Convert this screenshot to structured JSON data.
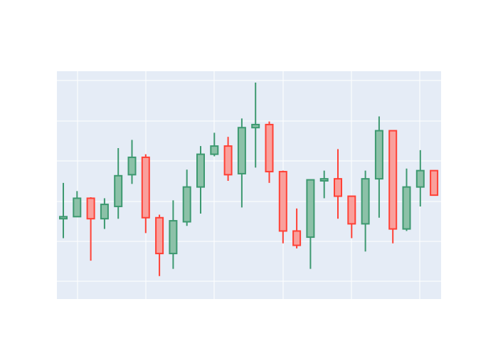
{
  "chart_data": {
    "type": "candlestick",
    "title": "",
    "xlabel": "",
    "ylabel": "",
    "tick_labels_visible": false,
    "grid": true,
    "legend": "none",
    "increasing_color": "#3D9970",
    "increasing_fill": "#8CC1A8",
    "decreasing_color": "#FF4136",
    "decreasing_fill": "#F9A09C",
    "background_color": "#E5ECF6",
    "ylim": [
      0,
      100
    ],
    "candles": [
      {
        "open": 33.5,
        "high": 51.0,
        "low": 24.0,
        "close": 34.5
      },
      {
        "open": 34.5,
        "high": 47.0,
        "low": 34.5,
        "close": 43.5
      },
      {
        "open": 43.5,
        "high": 44.0,
        "low": 13.0,
        "close": 33.5
      },
      {
        "open": 33.5,
        "high": 43.5,
        "low": 28.5,
        "close": 40.5
      },
      {
        "open": 39.5,
        "high": 68.0,
        "low": 33.5,
        "close": 54.5
      },
      {
        "open": 55.0,
        "high": 72.0,
        "low": 50.5,
        "close": 63.5
      },
      {
        "open": 63.5,
        "high": 65.0,
        "low": 26.5,
        "close": 34.0
      },
      {
        "open": 34.0,
        "high": 35.5,
        "low": 5.5,
        "close": 16.5
      },
      {
        "open": 16.5,
        "high": 42.5,
        "low": 9.0,
        "close": 32.5
      },
      {
        "open": 32.0,
        "high": 57.5,
        "low": 30.0,
        "close": 49.0
      },
      {
        "open": 49.0,
        "high": 69.0,
        "low": 36.0,
        "close": 65.0
      },
      {
        "open": 65.0,
        "high": 75.5,
        "low": 64.0,
        "close": 69.0
      },
      {
        "open": 69.0,
        "high": 73.5,
        "low": 52.0,
        "close": 55.0
      },
      {
        "open": 55.5,
        "high": 82.5,
        "low": 39.0,
        "close": 78.0
      },
      {
        "open": 78.0,
        "high": 100.0,
        "low": 58.5,
        "close": 79.5
      },
      {
        "open": 79.5,
        "high": 81.0,
        "low": 51.0,
        "close": 56.5
      },
      {
        "open": 56.5,
        "high": 57.0,
        "low": 21.5,
        "close": 27.5
      },
      {
        "open": 27.5,
        "high": 38.5,
        "low": 19.0,
        "close": 20.5
      },
      {
        "open": 24.5,
        "high": 52.5,
        "low": 9.0,
        "close": 52.5
      },
      {
        "open": 52.0,
        "high": 57.0,
        "low": 43.5,
        "close": 53.0
      },
      {
        "open": 53.0,
        "high": 67.5,
        "low": 33.5,
        "close": 44.5
      },
      {
        "open": 44.5,
        "high": 44.5,
        "low": 24.0,
        "close": 31.0
      },
      {
        "open": 31.0,
        "high": 57.0,
        "low": 17.5,
        "close": 53.0
      },
      {
        "open": 53.0,
        "high": 83.5,
        "low": 34.0,
        "close": 76.5
      },
      {
        "open": 76.5,
        "high": 76.5,
        "low": 21.5,
        "close": 28.5
      },
      {
        "open": 28.5,
        "high": 58.0,
        "low": 27.5,
        "close": 49.0
      },
      {
        "open": 49.0,
        "high": 67.0,
        "low": 39.5,
        "close": 57.0
      },
      {
        "open": 57.0,
        "high": 57.0,
        "low": 45.0,
        "close": 45.0
      }
    ]
  }
}
